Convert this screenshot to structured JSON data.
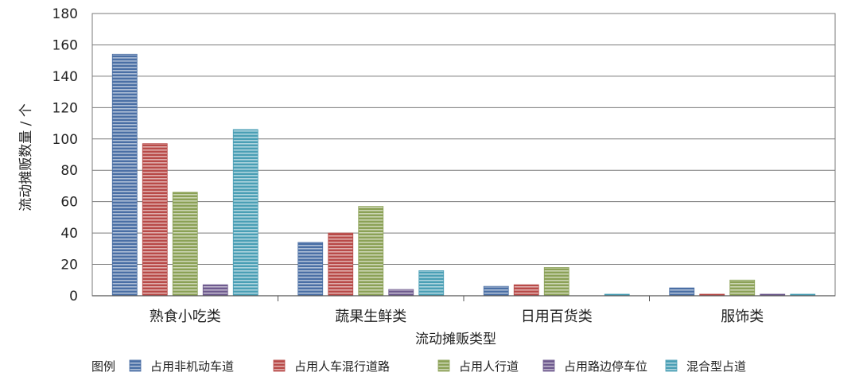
{
  "chart_data": {
    "type": "bar",
    "title": "",
    "xlabel": "流动摊贩类型",
    "ylabel": "流动摊贩数量 / 个",
    "ylim": [
      0,
      180
    ],
    "yticks": [
      0,
      20,
      40,
      60,
      80,
      100,
      120,
      140,
      160,
      180
    ],
    "grid": true,
    "legend_position": "bottom",
    "legend_title": "图例",
    "categories": [
      "熟食小吃类",
      "蔬果生鲜类",
      "日用百货类",
      "服饰类"
    ],
    "series": [
      {
        "name": "占用非机动车道",
        "values": [
          154,
          34,
          6,
          5
        ]
      },
      {
        "name": "占用人车混行道路",
        "values": [
          97,
          40,
          7,
          1
        ]
      },
      {
        "name": "占用人行道",
        "values": [
          66,
          57,
          18,
          10
        ]
      },
      {
        "name": "占用路边停车位",
        "values": [
          7,
          4,
          0,
          1
        ]
      },
      {
        "name": "混合型占道",
        "values": [
          106,
          16,
          1,
          1
        ]
      }
    ],
    "colors": [
      "#4a6fa5",
      "#b84a48",
      "#8ba156",
      "#6e5a8e",
      "#4a9fb5"
    ]
  }
}
